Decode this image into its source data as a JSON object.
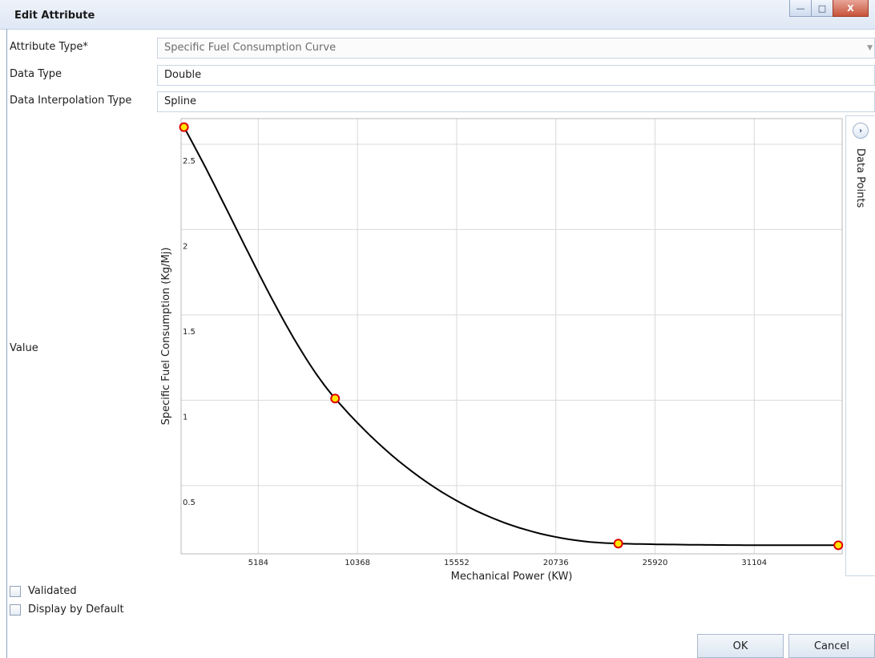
{
  "window": {
    "title": "Edit Attribute",
    "controls": {
      "minimize": "—",
      "maximize": "□",
      "close": "X"
    }
  },
  "form": {
    "attribute_type": {
      "label": "Attribute Type*",
      "value": "Specific Fuel Consumption Curve"
    },
    "data_type": {
      "label": "Data Type",
      "value": "Double"
    },
    "interpolation": {
      "label": "Data Interpolation Type",
      "value": "Spline"
    },
    "value_label": "Value"
  },
  "side_panel": {
    "label": "Data Points",
    "toggle": "›"
  },
  "checkboxes": [
    {
      "label": "Validated",
      "checked": false
    },
    {
      "label": "Display by Default",
      "checked": false
    }
  ],
  "buttons": {
    "ok": "OK",
    "cancel": "Cancel"
  },
  "colors": {
    "curve": "#000000",
    "point_fill": "#ffe600",
    "point_stroke": "#e00000",
    "grid": "#d9d9d9"
  },
  "chart_data": {
    "type": "line",
    "interpolation": "spline",
    "xlabel": "Mechanical Power (KW)",
    "ylabel": "Specific Fuel Consumption (Kg/Mj)",
    "xlim": [
      1150,
      35700
    ],
    "ylim": [
      0.1,
      2.65
    ],
    "xticks": [
      5184,
      10368,
      15552,
      20736,
      25920,
      31104
    ],
    "yticks": [
      0.5,
      1,
      1.5,
      2,
      2.5
    ],
    "grid": true,
    "series": [
      {
        "x": [
          1300,
          9200,
          24000,
          35500
        ],
        "y": [
          2.6,
          1.01,
          0.16,
          0.15
        ]
      }
    ]
  }
}
